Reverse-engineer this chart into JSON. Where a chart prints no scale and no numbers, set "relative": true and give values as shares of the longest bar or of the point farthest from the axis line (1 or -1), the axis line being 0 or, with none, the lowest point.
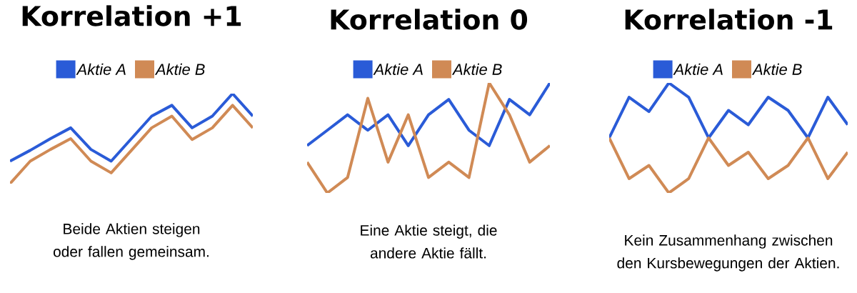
{
  "chart_data": [
    {
      "type": "line",
      "title": "Korrelation +1",
      "relative": true,
      "legend": "top",
      "categories": [
        null,
        null,
        null,
        null,
        null,
        null,
        null,
        null,
        null,
        null,
        null,
        null,
        null
      ],
      "series": [
        {
          "name": "Aktie A",
          "color": "#2a5bd7",
          "values": [
            0.25,
            0.37,
            0.5,
            0.62,
            0.38,
            0.25,
            0.5,
            0.75,
            0.87,
            0.62,
            0.75,
            1.0,
            0.75
          ]
        },
        {
          "name": "Aktie B",
          "color": "#d08a55",
          "values": [
            0.0,
            0.25,
            0.38,
            0.5,
            0.25,
            0.12,
            0.37,
            0.62,
            0.75,
            0.49,
            0.62,
            0.87,
            0.62
          ]
        }
      ],
      "annotations": [
        "Beide Aktien steigen oder fallen gemeinsam."
      ]
    },
    {
      "type": "line",
      "title": "Korrelation 0",
      "relative": true,
      "legend": "top",
      "categories": [
        null,
        null,
        null,
        null,
        null,
        null,
        null,
        null,
        null,
        null,
        null,
        null,
        null
      ],
      "series": [
        {
          "name": "Aktie A",
          "color": "#2a5bd7",
          "values": [
            0.43,
            0.57,
            0.71,
            0.57,
            0.71,
            0.43,
            0.71,
            0.85,
            0.57,
            0.43,
            0.85,
            0.71,
            1.0
          ]
        },
        {
          "name": "Aktie B",
          "color": "#d08a55",
          "values": [
            0.28,
            0.0,
            0.14,
            0.86,
            0.28,
            0.71,
            0.14,
            0.28,
            0.14,
            1.0,
            0.71,
            0.28,
            0.43
          ]
        }
      ],
      "annotations": [
        "Eine Aktie steigt, die andere Aktie fällt."
      ]
    },
    {
      "type": "line",
      "title": "Korrelation -1",
      "relative": true,
      "legend": "top",
      "categories": [
        null,
        null,
        null,
        null,
        null,
        null,
        null,
        null,
        null,
        null,
        null,
        null,
        null
      ],
      "series": [
        {
          "name": "Aktie A",
          "color": "#2a5bd7",
          "values": [
            0.5,
            0.87,
            0.74,
            1.0,
            0.87,
            0.5,
            0.75,
            0.62,
            0.87,
            0.75,
            0.5,
            0.87,
            0.62
          ]
        },
        {
          "name": "Aktie B",
          "color": "#d08a55",
          "values": [
            0.5,
            0.13,
            0.25,
            0.0,
            0.13,
            0.5,
            0.25,
            0.37,
            0.13,
            0.25,
            0.5,
            0.13,
            0.37
          ]
        }
      ],
      "annotations": [
        "Kein Zusammenhang zwischen den Kursbewegungen der Aktien."
      ]
    }
  ]
}
